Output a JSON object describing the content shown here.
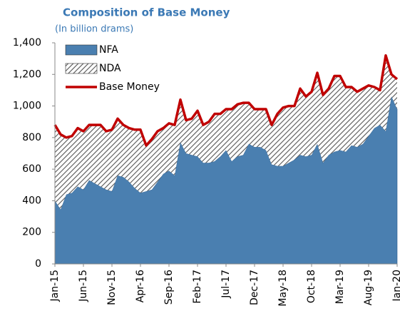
{
  "chart_data": {
    "type": "stacked_area_line",
    "title": "Composition of Base Money",
    "subtitle": "(In billion drams)",
    "categories": [
      "Jan-15",
      null,
      null,
      null,
      null,
      "Jun-15",
      null,
      null,
      null,
      null,
      "Nov-15",
      null,
      null,
      null,
      null,
      "Apr-16",
      null,
      null,
      null,
      null,
      "Sep-16",
      null,
      null,
      null,
      null,
      "Feb-17",
      null,
      null,
      null,
      null,
      "Jul-17",
      null,
      null,
      null,
      null,
      "Dec-17",
      null,
      null,
      null,
      null,
      "May-18",
      null,
      null,
      null,
      null,
      "Oct-18",
      null,
      null,
      null,
      null,
      "Mar-19",
      null,
      null,
      null,
      null,
      "Aug-19",
      null,
      null,
      null,
      null,
      "Jan-20"
    ],
    "series": [
      {
        "name": "NFA",
        "color": "#4a7fb0",
        "stack": "area",
        "values": [
          400,
          345,
          440,
          450,
          490,
          470,
          530,
          510,
          490,
          470,
          460,
          560,
          550,
          520,
          480,
          450,
          460,
          470,
          520,
          570,
          590,
          560,
          770,
          700,
          690,
          680,
          640,
          640,
          650,
          680,
          720,
          650,
          680,
          690,
          760,
          740,
          740,
          720,
          630,
          620,
          620,
          640,
          660,
          690,
          680,
          690,
          760,
          640,
          690,
          710,
          720,
          710,
          750,
          740,
          760,
          810,
          860,
          880,
          840,
          1060,
          980
        ]
      },
      {
        "name": "NDA",
        "color": "#888888",
        "stack": "area",
        "pattern": "hatch",
        "values": [
          480,
          475,
          360,
          360,
          370,
          370,
          350,
          370,
          390,
          370,
          390,
          360,
          330,
          340,
          370,
          400,
          290,
          320,
          320,
          290,
          300,
          320,
          270,
          210,
          230,
          290,
          240,
          260,
          300,
          270,
          260,
          330,
          330,
          330,
          260,
          240,
          240,
          260,
          250,
          330,
          370,
          360,
          340,
          420,
          380,
          400,
          450,
          430,
          420,
          480,
          470,
          410,
          370,
          350,
          350,
          320,
          260,
          220,
          480,
          140,
          190
        ]
      },
      {
        "name": "Base Money",
        "color": "#c00000",
        "stack": "line",
        "values": [
          880,
          820,
          800,
          810,
          860,
          840,
          880,
          880,
          880,
          840,
          850,
          920,
          880,
          860,
          850,
          850,
          750,
          790,
          840,
          860,
          890,
          880,
          1040,
          910,
          920,
          970,
          880,
          900,
          950,
          950,
          980,
          980,
          1010,
          1020,
          1020,
          980,
          980,
          980,
          880,
          950,
          990,
          1000,
          1000,
          1110,
          1060,
          1090,
          1210,
          1070,
          1110,
          1190,
          1190,
          1120,
          1120,
          1090,
          1110,
          1130,
          1120,
          1100,
          1320,
          1200,
          1170
        ]
      }
    ],
    "ylim": [
      0,
      1400
    ],
    "yticks": [
      0,
      200,
      400,
      600,
      800,
      {
        "value": 1000,
        "label": "1,000"
      },
      {
        "value": 1200,
        "label": "1,200"
      },
      {
        "value": 1400,
        "label": "1,400"
      }
    ],
    "legend": "upper left",
    "grid": false
  }
}
